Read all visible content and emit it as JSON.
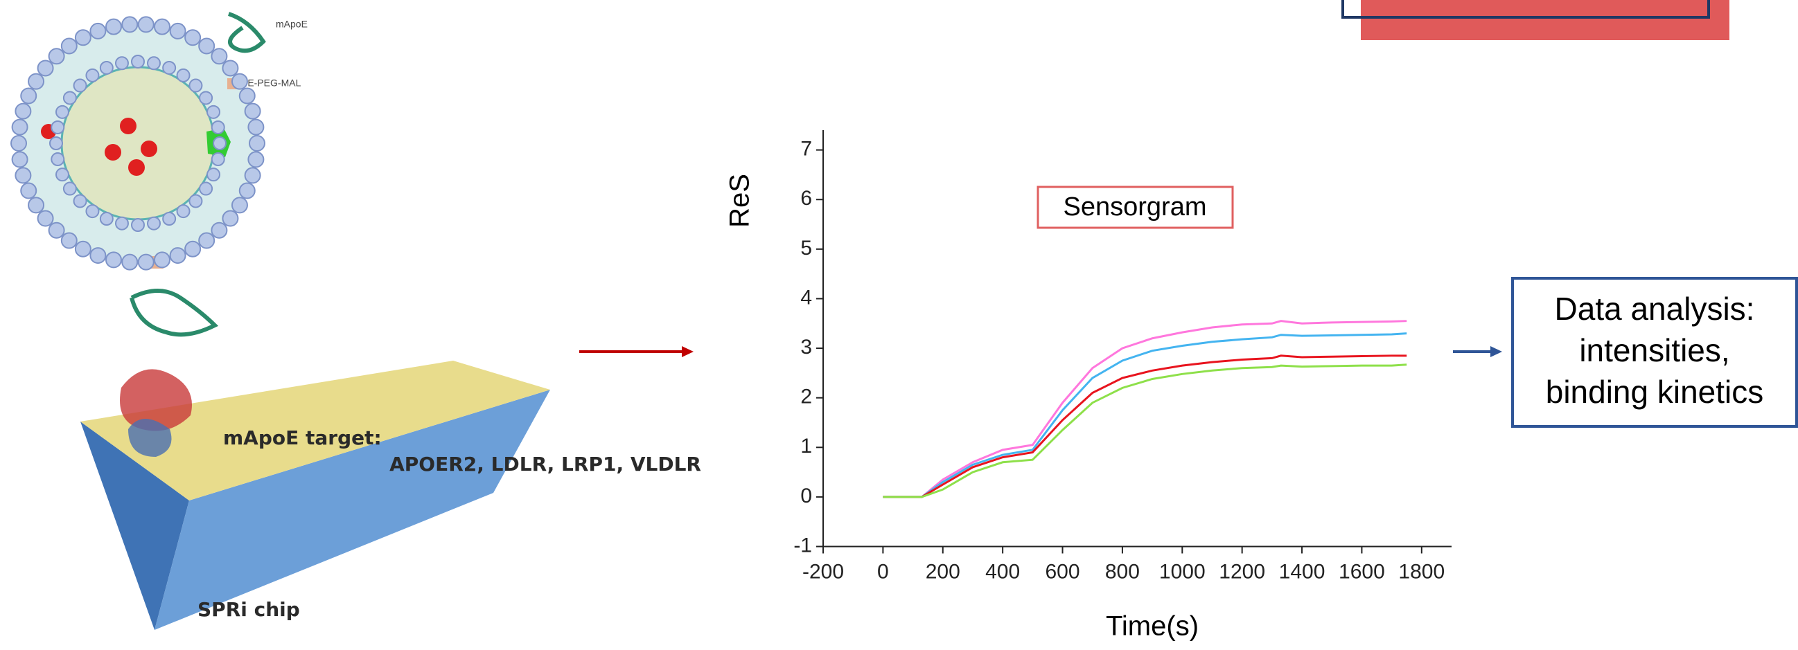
{
  "chart_data": {
    "type": "line",
    "title": "Sensorgram",
    "x_label": "Time(s)",
    "y_label": "ReS",
    "x": [
      0,
      100,
      130,
      200,
      300,
      400,
      500,
      600,
      700,
      800,
      900,
      1000,
      1100,
      1200,
      1300,
      1330,
      1400,
      1500,
      1600,
      1700,
      1750
    ],
    "series": [
      {
        "color": "#ff77dd",
        "values": [
          0,
          0,
          0,
          0.35,
          0.7,
          0.95,
          1.05,
          1.9,
          2.6,
          3.0,
          3.2,
          3.32,
          3.42,
          3.48,
          3.5,
          3.55,
          3.5,
          3.52,
          3.53,
          3.54,
          3.55
        ]
      },
      {
        "color": "#44b4f0",
        "values": [
          0,
          0,
          0,
          0.3,
          0.65,
          0.85,
          0.95,
          1.75,
          2.4,
          2.75,
          2.95,
          3.05,
          3.13,
          3.18,
          3.22,
          3.27,
          3.25,
          3.26,
          3.27,
          3.28,
          3.3
        ]
      },
      {
        "color": "#e8141e",
        "values": [
          0,
          0,
          0,
          0.25,
          0.6,
          0.8,
          0.9,
          1.55,
          2.1,
          2.4,
          2.55,
          2.65,
          2.72,
          2.77,
          2.8,
          2.85,
          2.82,
          2.83,
          2.84,
          2.85,
          2.85
        ]
      },
      {
        "color": "#8ee04a",
        "values": [
          0,
          0,
          0,
          0.15,
          0.5,
          0.7,
          0.75,
          1.35,
          1.9,
          2.2,
          2.38,
          2.48,
          2.55,
          2.6,
          2.62,
          2.65,
          2.63,
          2.64,
          2.65,
          2.65,
          2.67
        ]
      }
    ],
    "xlim": [
      -200,
      1900
    ],
    "ylim": [
      -1,
      7.4
    ],
    "xticks": [
      -200,
      0,
      200,
      400,
      600,
      800,
      1000,
      1200,
      1400,
      1600,
      1800
    ],
    "yticks": [
      -1,
      0,
      1,
      2,
      3,
      4,
      5,
      6,
      7
    ]
  },
  "diagram": {
    "liposome_labels": [
      "mApoE",
      "PE-PEG-MAL"
    ],
    "chip_labels": [
      "mApoE target:",
      "APOER2, LDLR, LRP1, VLDLR",
      "SPRi chip"
    ],
    "analysis_box": [
      "Data analysis:",
      "intensities,",
      "binding kinetics"
    ]
  }
}
